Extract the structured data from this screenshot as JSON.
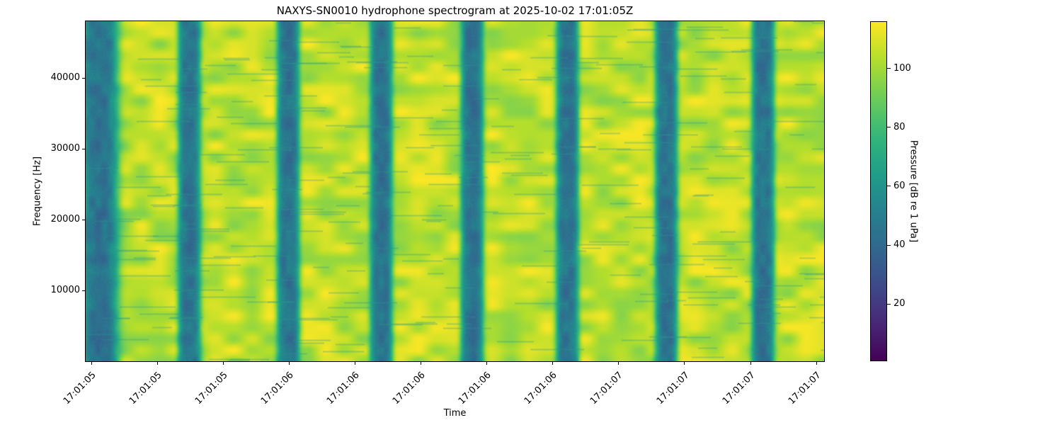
{
  "chart_data": {
    "type": "heatmap",
    "title": "NAXYS-SN0010 hydrophone spectrogram at 2025-10-02 17:01:05Z",
    "xlabel": "Time",
    "ylabel": "Frequency [Hz]",
    "x_tick_labels": [
      "17:01:05",
      "17:01:05",
      "17:01:05",
      "17:01:06",
      "17:01:06",
      "17:01:06",
      "17:01:06",
      "17:01:06",
      "17:01:07",
      "17:01:07",
      "17:01:07",
      "17:01:07"
    ],
    "y_ticks": [
      10000,
      20000,
      30000,
      40000
    ],
    "ylim": [
      0,
      48000
    ],
    "colorbar": {
      "label": "Pressure [dB re 1 uPa]",
      "ticks": [
        20,
        40,
        60,
        80,
        100
      ],
      "range": [
        0.6,
        116
      ],
      "colormap": "viridis"
    },
    "background_level_db": 105,
    "low_energy_band_level_db": 45,
    "low_energy_band_count": 8,
    "grid": false
  }
}
